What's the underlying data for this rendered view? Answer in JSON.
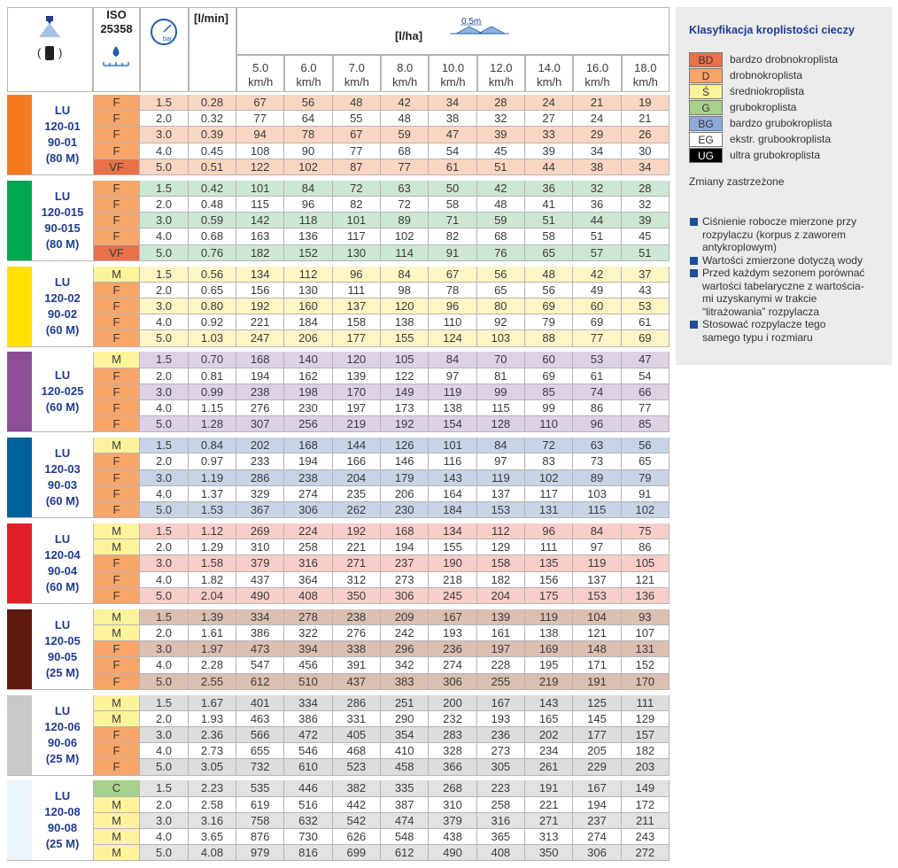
{
  "header": {
    "iso": "ISO",
    "iso_code": "25358",
    "pressure_icon": "bar",
    "flow_unit": "[l/min]",
    "rate_unit": "[l/ha]",
    "spacing": "0.5m",
    "columns": [
      {
        "speed": "5.0",
        "unit": "km/h"
      },
      {
        "speed": "6.0",
        "unit": "km/h"
      },
      {
        "speed": "7.0",
        "unit": "km/h"
      },
      {
        "speed": "8.0",
        "unit": "km/h"
      },
      {
        "speed": "10.0",
        "unit": "km/h"
      },
      {
        "speed": "12.0",
        "unit": "km/h"
      },
      {
        "speed": "14.0",
        "unit": "km/h"
      },
      {
        "speed": "16.0",
        "unit": "km/h"
      },
      {
        "speed": "18.0",
        "unit": "km/h"
      }
    ]
  },
  "table": {
    "class_colors": {
      "VF": "#e8714a",
      "F": "#f8a56a",
      "M": "#fdf39a",
      "C": "#a8d08d"
    },
    "groups": [
      {
        "color": "#f47b20",
        "tint": "#fad6c2",
        "labels": [
          "LU",
          "120-01",
          "90-01",
          "(80 M)"
        ],
        "rows": [
          {
            "class": "F",
            "pressure": "1.5",
            "flow": "0.28",
            "values": [
              67,
              56,
              48,
              42,
              34,
              28,
              24,
              21,
              19
            ]
          },
          {
            "class": "F",
            "pressure": "2.0",
            "flow": "0.32",
            "values": [
              77,
              64,
              55,
              48,
              38,
              32,
              27,
              24,
              21
            ]
          },
          {
            "class": "F",
            "pressure": "3.0",
            "flow": "0.39",
            "values": [
              94,
              78,
              67,
              59,
              47,
              39,
              33,
              29,
              26
            ]
          },
          {
            "class": "F",
            "pressure": "4.0",
            "flow": "0.45",
            "values": [
              108,
              90,
              77,
              68,
              54,
              45,
              39,
              34,
              30
            ]
          },
          {
            "class": "VF",
            "pressure": "5.0",
            "flow": "0.51",
            "values": [
              122,
              102,
              87,
              77,
              61,
              51,
              44,
              38,
              34
            ]
          }
        ]
      },
      {
        "color": "#00a651",
        "tint": "#cde7d4",
        "labels": [
          "LU",
          "120-015",
          "90-015",
          "(80 M)"
        ],
        "rows": [
          {
            "class": "F",
            "pressure": "1.5",
            "flow": "0.42",
            "values": [
              101,
              84,
              72,
              63,
              50,
              42,
              36,
              32,
              28
            ]
          },
          {
            "class": "F",
            "pressure": "2.0",
            "flow": "0.48",
            "values": [
              115,
              96,
              82,
              72,
              58,
              48,
              41,
              36,
              32
            ]
          },
          {
            "class": "F",
            "pressure": "3.0",
            "flow": "0.59",
            "values": [
              142,
              118,
              101,
              89,
              71,
              59,
              51,
              44,
              39
            ]
          },
          {
            "class": "F",
            "pressure": "4.0",
            "flow": "0.68",
            "values": [
              163,
              136,
              117,
              102,
              82,
              68,
              58,
              51,
              45
            ]
          },
          {
            "class": "VF",
            "pressure": "5.0",
            "flow": "0.76",
            "values": [
              182,
              152,
              130,
              114,
              91,
              76,
              65,
              57,
              51
            ]
          }
        ]
      },
      {
        "color": "#ffe100",
        "tint": "#fdf5c6",
        "labels": [
          "LU",
          "120-02",
          "90-02",
          "(60 M)"
        ],
        "rows": [
          {
            "class": "M",
            "pressure": "1.5",
            "flow": "0.56",
            "values": [
              134,
              112,
              96,
              84,
              67,
              56,
              48,
              42,
              37
            ]
          },
          {
            "class": "F",
            "pressure": "2.0",
            "flow": "0.65",
            "values": [
              156,
              130,
              111,
              98,
              78,
              65,
              56,
              49,
              43
            ]
          },
          {
            "class": "F",
            "pressure": "3.0",
            "flow": "0.80",
            "values": [
              192,
              160,
              137,
              120,
              96,
              80,
              69,
              60,
              53
            ]
          },
          {
            "class": "F",
            "pressure": "4.0",
            "flow": "0.92",
            "values": [
              221,
              184,
              158,
              138,
              110,
              92,
              79,
              69,
              61
            ]
          },
          {
            "class": "F",
            "pressure": "5.0",
            "flow": "1.03",
            "values": [
              247,
              206,
              177,
              155,
              124,
              103,
              88,
              77,
              69
            ]
          }
        ]
      },
      {
        "color": "#8c4f96",
        "tint": "#ddd1e6",
        "labels": [
          "LU",
          "120-025",
          "(60 M)"
        ],
        "rows": [
          {
            "class": "M",
            "pressure": "1.5",
            "flow": "0.70",
            "values": [
              168,
              140,
              120,
              105,
              84,
              70,
              60,
              53,
              47
            ]
          },
          {
            "class": "F",
            "pressure": "2.0",
            "flow": "0.81",
            "values": [
              194,
              162,
              139,
              122,
              97,
              81,
              69,
              61,
              54
            ]
          },
          {
            "class": "F",
            "pressure": "3.0",
            "flow": "0.99",
            "values": [
              238,
              198,
              170,
              149,
              119,
              99,
              85,
              74,
              66
            ]
          },
          {
            "class": "F",
            "pressure": "4.0",
            "flow": "1.15",
            "values": [
              276,
              230,
              197,
              173,
              138,
              115,
              99,
              86,
              77
            ]
          },
          {
            "class": "F",
            "pressure": "5.0",
            "flow": "1.28",
            "values": [
              307,
              256,
              219,
              192,
              154,
              128,
              110,
              96,
              85
            ]
          }
        ]
      },
      {
        "color": "#00629b",
        "tint": "#c7d3e7",
        "labels": [
          "LU",
          "120-03",
          "90-03",
          "(60 M)"
        ],
        "rows": [
          {
            "class": "M",
            "pressure": "1.5",
            "flow": "0.84",
            "values": [
              202,
              168,
              144,
              126,
              101,
              84,
              72,
              63,
              56
            ]
          },
          {
            "class": "F",
            "pressure": "2.0",
            "flow": "0.97",
            "values": [
              233,
              194,
              166,
              146,
              116,
              97,
              83,
              73,
              65
            ]
          },
          {
            "class": "F",
            "pressure": "3.0",
            "flow": "1.19",
            "values": [
              286,
              238,
              204,
              179,
              143,
              119,
              102,
              89,
              79
            ]
          },
          {
            "class": "F",
            "pressure": "4.0",
            "flow": "1.37",
            "values": [
              329,
              274,
              235,
              206,
              164,
              137,
              117,
              103,
              91
            ]
          },
          {
            "class": "F",
            "pressure": "5.0",
            "flow": "1.53",
            "values": [
              367,
              306,
              262,
              230,
              184,
              153,
              131,
              115,
              102
            ]
          }
        ]
      },
      {
        "color": "#e31e26",
        "tint": "#f8cec8",
        "labels": [
          "LU",
          "120-04",
          "90-04",
          "(60 M)"
        ],
        "rows": [
          {
            "class": "M",
            "pressure": "1.5",
            "flow": "1.12",
            "values": [
              269,
              224,
              192,
              168,
              134,
              112,
              96,
              84,
              75
            ]
          },
          {
            "class": "M",
            "pressure": "2.0",
            "flow": "1.29",
            "values": [
              310,
              258,
              221,
              194,
              155,
              129,
              111,
              97,
              86
            ]
          },
          {
            "class": "F",
            "pressure": "3.0",
            "flow": "1.58",
            "values": [
              379,
              316,
              271,
              237,
              190,
              158,
              135,
              119,
              105
            ]
          },
          {
            "class": "F",
            "pressure": "4.0",
            "flow": "1.82",
            "values": [
              437,
              364,
              312,
              273,
              218,
              182,
              156,
              137,
              121
            ]
          },
          {
            "class": "F",
            "pressure": "5.0",
            "flow": "2.04",
            "values": [
              490,
              408,
              350,
              306,
              245,
              204,
              175,
              153,
              136
            ]
          }
        ]
      },
      {
        "color": "#5e1a0c",
        "tint": "#dabfb2",
        "labels": [
          "LU",
          "120-05",
          "90-05",
          "(25 M)"
        ],
        "rows": [
          {
            "class": "M",
            "pressure": "1.5",
            "flow": "1.39",
            "values": [
              334,
              278,
              238,
              209,
              167,
              139,
              119,
              104,
              93
            ]
          },
          {
            "class": "M",
            "pressure": "2.0",
            "flow": "1.61",
            "values": [
              386,
              322,
              276,
              242,
              193,
              161,
              138,
              121,
              107
            ]
          },
          {
            "class": "F",
            "pressure": "3.0",
            "flow": "1.97",
            "values": [
              473,
              394,
              338,
              296,
              236,
              197,
              169,
              148,
              131
            ]
          },
          {
            "class": "F",
            "pressure": "4.0",
            "flow": "2.28",
            "values": [
              547,
              456,
              391,
              342,
              274,
              228,
              195,
              171,
              152
            ]
          },
          {
            "class": "F",
            "pressure": "5.0",
            "flow": "2.55",
            "values": [
              612,
              510,
              437,
              383,
              306,
              255,
              219,
              191,
              170
            ]
          }
        ]
      },
      {
        "color": "#c8c9ca",
        "tint": "#dddddd",
        "labels": [
          "LU",
          "120-06",
          "90-06",
          "(25 M)"
        ],
        "rows": [
          {
            "class": "M",
            "pressure": "1.5",
            "flow": "1.67",
            "values": [
              401,
              334,
              286,
              251,
              200,
              167,
              143,
              125,
              111
            ]
          },
          {
            "class": "M",
            "pressure": "2.0",
            "flow": "1.93",
            "values": [
              463,
              386,
              331,
              290,
              232,
              193,
              165,
              145,
              129
            ]
          },
          {
            "class": "F",
            "pressure": "3.0",
            "flow": "2.36",
            "values": [
              566,
              472,
              405,
              354,
              283,
              236,
              202,
              177,
              157
            ]
          },
          {
            "class": "F",
            "pressure": "4.0",
            "flow": "2.73",
            "values": [
              655,
              546,
              468,
              410,
              328,
              273,
              234,
              205,
              182
            ]
          },
          {
            "class": "F",
            "pressure": "5.0",
            "flow": "3.05",
            "values": [
              732,
              610,
              523,
              458,
              366,
              305,
              261,
              229,
              203
            ]
          }
        ]
      },
      {
        "color": "#eaf4fb",
        "tint": "#e2e2e2",
        "labels": [
          "LU",
          "120-08",
          "90-08",
          "(25 M)"
        ],
        "rows": [
          {
            "class": "C",
            "pressure": "1.5",
            "flow": "2.23",
            "values": [
              535,
              446,
              382,
              335,
              268,
              223,
              191,
              167,
              149
            ]
          },
          {
            "class": "M",
            "pressure": "2.0",
            "flow": "2.58",
            "values": [
              619,
              516,
              442,
              387,
              310,
              258,
              221,
              194,
              172
            ]
          },
          {
            "class": "M",
            "pressure": "3.0",
            "flow": "3.16",
            "values": [
              758,
              632,
              542,
              474,
              379,
              316,
              271,
              237,
              211
            ]
          },
          {
            "class": "M",
            "pressure": "4.0",
            "flow": "3.65",
            "values": [
              876,
              730,
              626,
              548,
              438,
              365,
              313,
              274,
              243
            ]
          },
          {
            "class": "M",
            "pressure": "5.0",
            "flow": "4.08",
            "values": [
              979,
              816,
              699,
              612,
              490,
              408,
              350,
              306,
              272
            ]
          }
        ]
      }
    ]
  },
  "legend": {
    "title": "Klasyfikacja kroplistości cieczy",
    "items": [
      {
        "code": "BD",
        "label": "bardzo drobnokroplista",
        "color": "#e8714a"
      },
      {
        "code": "D",
        "label": "drobnokroplista",
        "color": "#f8a56a"
      },
      {
        "code": "Ś",
        "label": "średniokroplista",
        "color": "#fdf39a"
      },
      {
        "code": "G",
        "label": "grubokroplista",
        "color": "#a8d08d"
      },
      {
        "code": "BG",
        "label": "bardzo grubokroplista",
        "color": "#8eaadb"
      },
      {
        "code": "EG",
        "label": "ekstr. grubookroplista",
        "color": "#ffffff"
      },
      {
        "code": "UG",
        "label": "ultra grubokroplista",
        "color": "#000000"
      }
    ],
    "reserved": "Zmiany zastrzeżone",
    "notes": [
      [
        "Ciśnienie robocze mierzone przy",
        "rozpylaczu (korpus z zaworem",
        "antykroplowym)"
      ],
      [
        "Wartości zmierzone dotyczą wody"
      ],
      [
        "Przed każdym sezonem porównać",
        "wartości tabelaryczne z wartościa-",
        "mi uzyskanymi w trakcie",
        "“litrażowania” rozpylacza"
      ],
      [
        "Stosować rozpylacze tego",
        "samego typu i rozmiaru"
      ]
    ]
  }
}
